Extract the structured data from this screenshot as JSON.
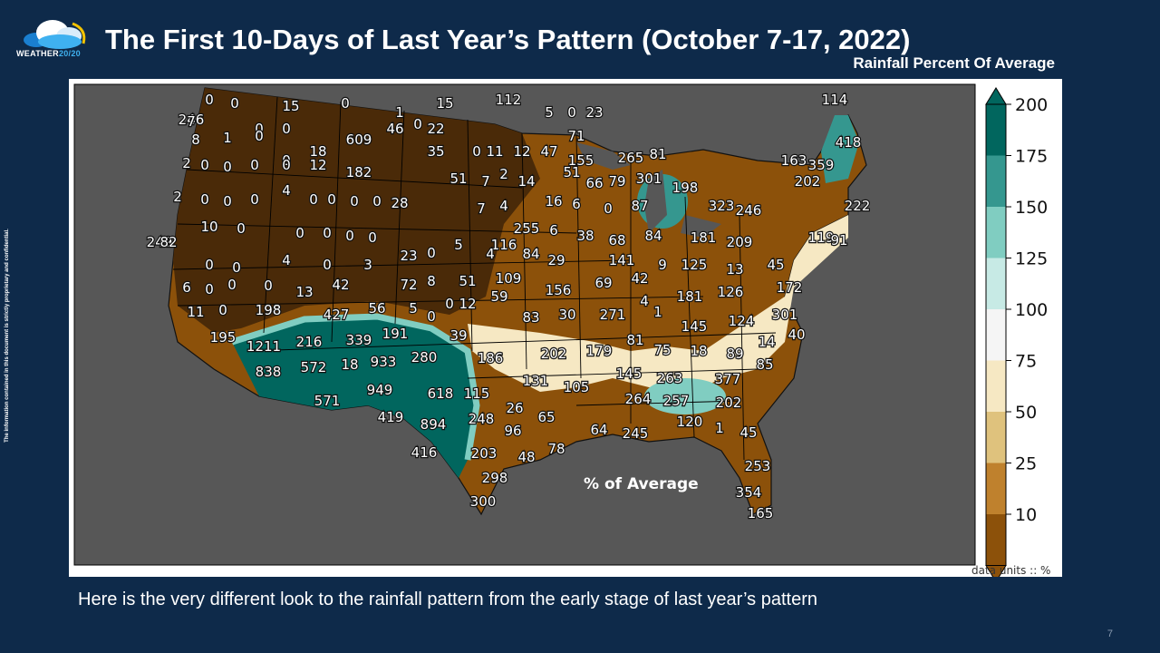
{
  "header": {
    "brand": "WEATHER",
    "brand_accent": "20/20",
    "title": "The First 10-Days of Last Year’s Pattern (October 7-17, 2022)",
    "subtitle": "Rainfall Percent Of Average"
  },
  "sidebar_note": "The information contained in this document is strictly proprietary and confidential.",
  "map": {
    "overlay_label": "% of Average",
    "units_note": "data units :: %",
    "colorbar": {
      "ticks": [
        "200",
        "175",
        "150",
        "125",
        "100",
        "75",
        "50",
        "25",
        "10"
      ],
      "colors": [
        "#01665e",
        "#35978f",
        "#80cdc1",
        "#c7eae5",
        "#f5f5f5",
        "#f6e8c3",
        "#dfc27d",
        "#bf812d",
        "#8c510a"
      ]
    },
    "colors": {
      "ocean": "#575757",
      "very_dry": "#4a2a08",
      "dry": "#8c510a",
      "below": "#bf812d",
      "near": "#f6e8c3",
      "wet": "#35978f",
      "very_wet": "#01665e"
    },
    "values": [
      "0",
      "0",
      "15",
      "0",
      "1",
      "15",
      "112",
      "5",
      "0",
      "23",
      "114",
      "246",
      "7",
      "0",
      "0",
      "609",
      "46",
      "0",
      "22",
      "71",
      "418",
      "8",
      "1",
      "0",
      "0",
      "18",
      "35",
      "0",
      "11",
      "12",
      "47",
      "155",
      "265",
      "81",
      "163",
      "359",
      "2",
      "0",
      "0",
      "0",
      "0",
      "12",
      "182",
      "51",
      "7",
      "2",
      "14",
      "51",
      "66",
      "79",
      "301",
      "198",
      "202",
      "2",
      "0",
      "0",
      "0",
      "4",
      "0",
      "0",
      "0",
      "0",
      "28",
      "7",
      "4",
      "16",
      "6",
      "0",
      "87",
      "323",
      "246",
      "222",
      "249",
      "82",
      "10",
      "0",
      "0",
      "0",
      "0",
      "0",
      "5",
      "255",
      "6",
      "38",
      "68",
      "84",
      "181",
      "209",
      "119",
      "91",
      "116",
      "0",
      "0",
      "4",
      "0",
      "3",
      "23",
      "0",
      "4",
      "84",
      "29",
      "141",
      "9",
      "125",
      "13",
      "45",
      "6",
      "0",
      "0",
      "0",
      "13",
      "42",
      "72",
      "8",
      "51",
      "109",
      "156",
      "69",
      "42",
      "181",
      "126",
      "172",
      "11",
      "0",
      "198",
      "427",
      "56",
      "5",
      "0",
      "0",
      "12",
      "59",
      "83",
      "30",
      "271",
      "4",
      "1",
      "145",
      "124",
      "301",
      "195",
      "1211",
      "216",
      "339",
      "191",
      "39",
      "202",
      "179",
      "81",
      "75",
      "18",
      "89",
      "14",
      "40",
      "838",
      "572",
      "18",
      "933",
      "280",
      "186",
      "131",
      "105",
      "145",
      "263",
      "377",
      "85",
      "571",
      "949",
      "618",
      "115",
      "26",
      "65",
      "264",
      "257",
      "202",
      "419",
      "894",
      "248",
      "96",
      "64",
      "245",
      "120",
      "1",
      "45",
      "416",
      "203",
      "48",
      "78",
      "253",
      "298",
      "354",
      "300",
      "165"
    ]
  },
  "footer": {
    "caption": "Here is the very different look to the rainfall pattern from the early stage of last year’s pattern",
    "page_number": "7"
  }
}
